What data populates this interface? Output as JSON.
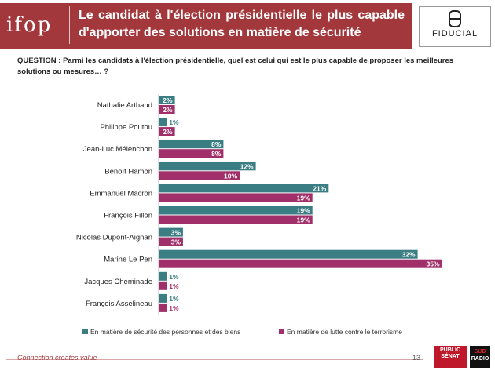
{
  "header": {
    "logo_text": "ifop",
    "title": "Le candidat à l'élection présidentielle le plus capable d'apporter des solutions en matière de sécurité",
    "partner_logo": "FIDUCIAL"
  },
  "question": {
    "label": "QUESTION",
    "text": " : Parmi les candidats à l'élection présidentielle, quel est celui qui est le plus capable de proposer les meilleures solutions ou mesures… ?"
  },
  "colors": {
    "series1": "#3a7e83",
    "series2": "#a1306a",
    "brand": "#a3383c"
  },
  "chart_data": {
    "type": "bar",
    "orientation": "horizontal",
    "categories": [
      "Nathalie Arthaud",
      "Philippe Poutou",
      "Jean-Luc Mélenchon",
      "Benoît Hamon",
      "Emmanuel Macron",
      "François Fillon",
      "Nicolas Dupont-Aignan",
      "Marine Le Pen",
      "Jacques Cheminade",
      "François Asselineau"
    ],
    "series": [
      {
        "name": "En matière de sécurité des personnes et des biens",
        "values": [
          2,
          1,
          8,
          12,
          21,
          19,
          3,
          32,
          1,
          1
        ],
        "labels": [
          "2%",
          "1%",
          "8%",
          "12%",
          "21%",
          "19%",
          "3%",
          "32%",
          "1%",
          "1%"
        ]
      },
      {
        "name": "En matière de lutte contre le terrorisme",
        "values": [
          2,
          2,
          8,
          10,
          19,
          19,
          3,
          35,
          1,
          1
        ],
        "labels": [
          "2%",
          "2%",
          "8%",
          "10%",
          "19%",
          "19%",
          "3%",
          "35%",
          "1%",
          "1%"
        ]
      }
    ],
    "legend_position": "bottom",
    "grid": false
  },
  "footer": {
    "tagline": "Connection creates value",
    "page": "13",
    "logo1": "PUBLIC SÉNAT",
    "logo2_top": "SUD",
    "logo2_bottom": "RADIO"
  }
}
